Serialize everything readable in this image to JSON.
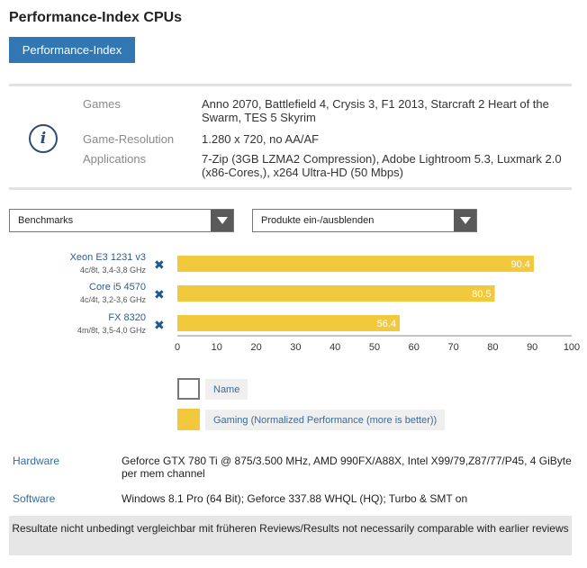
{
  "page": {
    "title": "Performance-Index CPUs"
  },
  "tab": {
    "label": "Performance-Index"
  },
  "info": {
    "rows": [
      {
        "label": "Games",
        "value": "Anno 2070, Battlefield 4, Crysis 3, F1 2013, Starcraft 2 Heart of the Swarm, TES 5 Skyrim"
      },
      {
        "label": "Game-Resolution",
        "value": "1.280 x 720, no AA/AF"
      },
      {
        "label": "Applications",
        "value": "7-Zip (3GB LZMA2 Compression), Adobe Lightroom 5.3, Luxmark 2.0 (x86-Cores,), x264 Ultra-HD (50 Mbps)"
      }
    ]
  },
  "controls": {
    "benchmarks_label": "Benchmarks",
    "products_label": "Produkte ein-/ausblenden"
  },
  "chart_data": {
    "type": "bar",
    "orientation": "horizontal",
    "categories": [
      "Xeon E3 1231 v3",
      "Core i5 4570",
      "FX 8320"
    ],
    "category_specs": [
      "4c/8t, 3,4-3,8 GHz",
      "4c/4t, 3,2-3,6 GHz",
      "4m/8t, 3,5-4,0 GHz"
    ],
    "series": [
      {
        "name": "Gaming (Normalized Performance (more is better))",
        "values": [
          90.4,
          80.5,
          56.4
        ]
      }
    ],
    "value_labels": [
      "90.4",
      "80.5",
      "56.4"
    ],
    "xlim": [
      0,
      100
    ],
    "xticks": [
      "0",
      "10",
      "20",
      "30",
      "40",
      "50",
      "60",
      "70",
      "80",
      "90",
      "100"
    ],
    "bar_color": "#f2c93c",
    "grid": false,
    "legend": {
      "position": "bottom-left",
      "entries": [
        {
          "label": "Name",
          "color": "#ffffff"
        },
        {
          "label": "Gaming (Normalized Performance (more is better))",
          "color": "#f2c93c"
        }
      ]
    }
  },
  "remove_icon": "close-x-icon",
  "specs": [
    {
      "label": "Hardware",
      "value": "Geforce GTX 780 Ti @ 875/3.500 MHz, AMD 990FX/A88X, Intel X99/79,Z87/77/P45, 4 GiByte per mem channel"
    },
    {
      "label": "Software",
      "value": "Windows 8.1 Pro (64 Bit); Geforce 337.88 WHQL (HQ); Turbo & SMT on"
    }
  ],
  "footnote": "Resultate nicht unbedingt vergleichbar mit früheren Reviews/Results not necessarily comparable with earlier reviews",
  "colors": {
    "accent": "#3177b4",
    "link": "#2d6da3",
    "bar": "#f2c93c"
  }
}
